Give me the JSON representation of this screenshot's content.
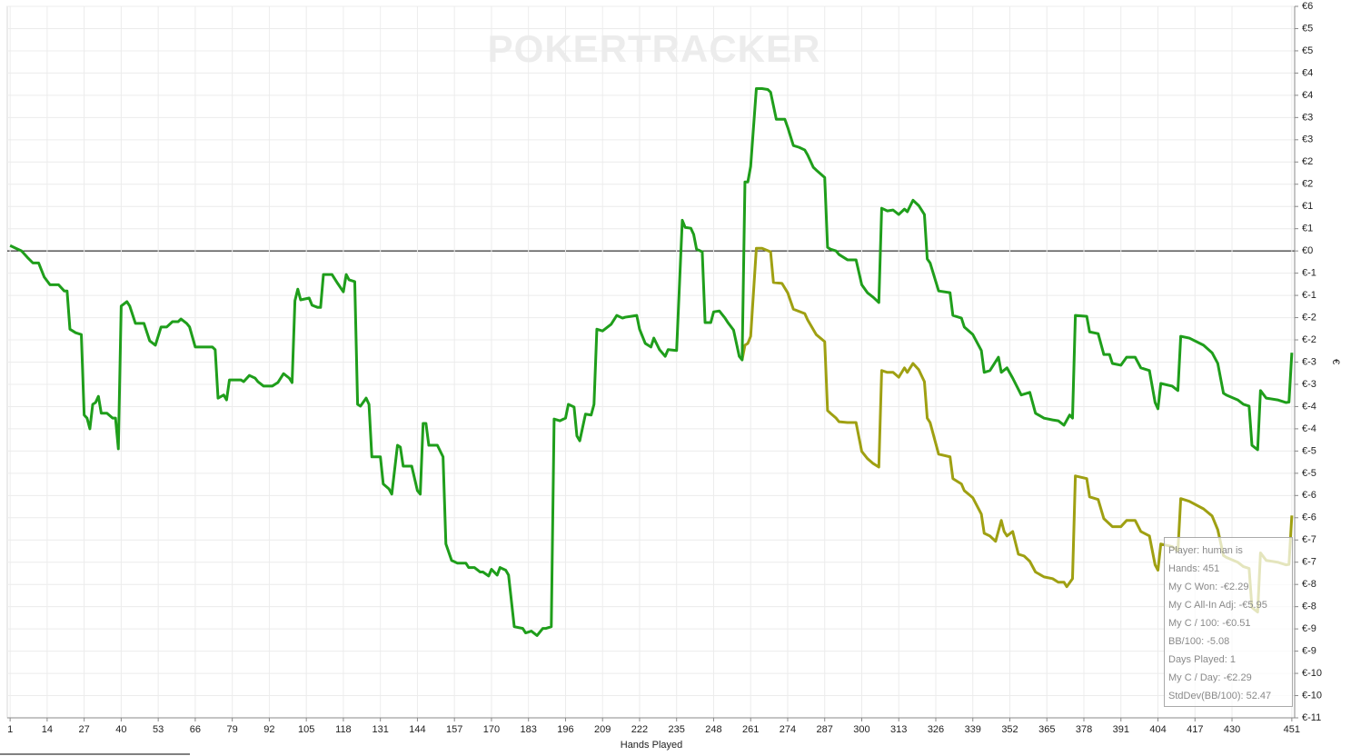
{
  "chart_data": {
    "type": "line",
    "watermark": "POKERTRACKER",
    "x_label": "Hands Played",
    "y_label": "€",
    "xlim": [
      0,
      452
    ],
    "ylim": [
      -10.5,
      5.5
    ],
    "xticks": [
      1,
      14,
      27,
      40,
      53,
      66,
      79,
      92,
      105,
      118,
      131,
      144,
      157,
      170,
      183,
      196,
      209,
      222,
      235,
      248,
      261,
      274,
      287,
      300,
      313,
      326,
      339,
      352,
      365,
      378,
      391,
      404,
      417,
      430,
      451
    ],
    "yticks": [
      {
        "value": 5.5,
        "label": "€6"
      },
      {
        "value": 5,
        "label": "€5"
      },
      {
        "value": 4.5,
        "label": "€5"
      },
      {
        "value": 4,
        "label": "€4"
      },
      {
        "value": 3.5,
        "label": "€4"
      },
      {
        "value": 3,
        "label": "€3"
      },
      {
        "value": 2.5,
        "label": "€3"
      },
      {
        "value": 2,
        "label": "€2"
      },
      {
        "value": 1.5,
        "label": "€2"
      },
      {
        "value": 1,
        "label": "€1"
      },
      {
        "value": 0.5,
        "label": "€1"
      },
      {
        "value": 0,
        "label": "€0"
      },
      {
        "value": -0.5,
        "label": "€-1"
      },
      {
        "value": -1,
        "label": "€-1"
      },
      {
        "value": -1.5,
        "label": "€-2"
      },
      {
        "value": -2,
        "label": "€-2"
      },
      {
        "value": -2.5,
        "label": "€-3"
      },
      {
        "value": -3,
        "label": "€-3"
      },
      {
        "value": -3.5,
        "label": "€-4"
      },
      {
        "value": -4,
        "label": "€-4"
      },
      {
        "value": -4.5,
        "label": "€-5"
      },
      {
        "value": -5,
        "label": "€-5"
      },
      {
        "value": -5.5,
        "label": "€-6"
      },
      {
        "value": -6,
        "label": "€-6"
      },
      {
        "value": -6.5,
        "label": "€-7"
      },
      {
        "value": -7,
        "label": "€-7"
      },
      {
        "value": -7.5,
        "label": "€-8"
      },
      {
        "value": -8,
        "label": "€-8"
      },
      {
        "value": -8.5,
        "label": "€-9"
      },
      {
        "value": -9,
        "label": "€-9"
      },
      {
        "value": -9.5,
        "label": "€-10"
      },
      {
        "value": -10,
        "label": "€-10"
      },
      {
        "value": -10.5,
        "label": "€-11"
      }
    ],
    "grid": true,
    "zero_line": true,
    "series": [
      {
        "color": "#9fa012",
        "x": [
          258,
          259,
          260,
          261,
          263,
          265,
          268,
          269,
          272,
          274,
          276,
          280,
          281,
          284,
          287,
          288,
          289,
          291,
          292,
          295,
          298,
          300,
          302,
          304,
          306,
          307,
          309,
          311,
          313,
          315,
          316,
          318,
          320,
          322,
          323,
          324,
          327,
          331,
          332,
          335,
          336,
          339,
          342,
          343,
          345,
          347,
          349,
          350,
          351,
          353,
          355,
          357,
          359,
          361,
          364,
          367,
          369,
          371,
          372,
          374,
          375,
          379,
          380,
          383,
          385,
          387,
          388,
          391,
          393,
          396,
          398,
          401,
          403,
          404,
          405,
          409,
          411,
          412,
          415,
          420,
          423,
          425,
          427,
          428,
          432,
          434,
          436,
          437,
          439,
          440,
          442,
          446,
          449,
          450,
          451
        ],
        "values": [
          -2.45,
          -2.12,
          -2.08,
          -1.92,
          0.06,
          0.06,
          -0.02,
          -0.71,
          -0.73,
          -0.94,
          -1.31,
          -1.41,
          -1.55,
          -1.88,
          -2.04,
          -3.59,
          -3.65,
          -3.76,
          -3.84,
          -3.86,
          -3.86,
          -4.51,
          -4.67,
          -4.78,
          -4.86,
          -2.69,
          -2.73,
          -2.73,
          -2.84,
          -2.63,
          -2.73,
          -2.53,
          -2.67,
          -2.94,
          -3.76,
          -3.86,
          -4.57,
          -4.63,
          -5.12,
          -5.24,
          -5.39,
          -5.55,
          -5.92,
          -6.35,
          -6.41,
          -6.53,
          -6.06,
          -6.31,
          -6.41,
          -6.31,
          -6.82,
          -6.86,
          -6.98,
          -7.22,
          -7.33,
          -7.37,
          -7.45,
          -7.45,
          -7.55,
          -7.37,
          -5.06,
          -5.12,
          -5.53,
          -5.59,
          -6.02,
          -6.14,
          -6.2,
          -6.2,
          -6.06,
          -6.06,
          -6.31,
          -6.41,
          -7.06,
          -7.18,
          -6.59,
          -6.65,
          -6.75,
          -5.57,
          -5.63,
          -5.8,
          -5.96,
          -6.27,
          -6.85,
          -6.89,
          -7.0,
          -7.1,
          -7.14,
          -8.02,
          -8.12,
          -6.79,
          -6.96,
          -7.0,
          -7.06,
          -7.05,
          -5.95
        ]
      },
      {
        "color": "#1f9e1b",
        "x": [
          1,
          3,
          5,
          7,
          9,
          11,
          13,
          15,
          18,
          20,
          21,
          22,
          24,
          26,
          27,
          28,
          29,
          30,
          31,
          32,
          33,
          35,
          37,
          38,
          39,
          40,
          42,
          43,
          45,
          48,
          50,
          52,
          54,
          56,
          58,
          60,
          61,
          63,
          64,
          66,
          72,
          73,
          74,
          76,
          77,
          78,
          82,
          83,
          85,
          87,
          88,
          90,
          93,
          95,
          97,
          99,
          100,
          101,
          102,
          103,
          106,
          107,
          109,
          110,
          111,
          114,
          116,
          118,
          119,
          120,
          122,
          123,
          124,
          126,
          127,
          128,
          131,
          132,
          134,
          135,
          137,
          138,
          139,
          142,
          144,
          145,
          146,
          147,
          148,
          151,
          153,
          154,
          156,
          158,
          161,
          162,
          164,
          166,
          167,
          169,
          170,
          172,
          173,
          175,
          176,
          178,
          181,
          182,
          184,
          186,
          188,
          189,
          191,
          192,
          194,
          196,
          197,
          199,
          200,
          201,
          203,
          205,
          206,
          207,
          209,
          212,
          214,
          216,
          217,
          219,
          221,
          222,
          224,
          226,
          227,
          229,
          231,
          232,
          235,
          237,
          238,
          240,
          241,
          242,
          244,
          245,
          247,
          248,
          250,
          252,
          253,
          255,
          257,
          258,
          259,
          260,
          261,
          263,
          265,
          267,
          268,
          270,
          273,
          274,
          276,
          278,
          280,
          281,
          283,
          284,
          287,
          288,
          289,
          291,
          292,
          295,
          298,
          300,
          302,
          304,
          306,
          307,
          309,
          311,
          313,
          315,
          316,
          318,
          320,
          322,
          323,
          324,
          327,
          331,
          332,
          335,
          336,
          339,
          342,
          343,
          345,
          348,
          349,
          351,
          353,
          356,
          359,
          361,
          364,
          367,
          369,
          371,
          373,
          374,
          375,
          379,
          380,
          383,
          385,
          387,
          388,
          391,
          393,
          396,
          398,
          401,
          403,
          404,
          405,
          409,
          411,
          412,
          415,
          420,
          423,
          425,
          427,
          428,
          432,
          434,
          436,
          437,
          439,
          440,
          442,
          446,
          449,
          450,
          451
        ],
        "values": [
          0.12,
          0.06,
          0,
          -0.14,
          -0.27,
          -0.27,
          -0.59,
          -0.76,
          -0.76,
          -0.9,
          -0.9,
          -1.76,
          -1.84,
          -1.88,
          -3.69,
          -3.76,
          -4.0,
          -3.45,
          -3.41,
          -3.27,
          -3.65,
          -3.65,
          -3.76,
          -3.76,
          -4.45,
          -1.24,
          -1.14,
          -1.24,
          -1.63,
          -1.63,
          -2.02,
          -2.12,
          -1.71,
          -1.71,
          -1.59,
          -1.59,
          -1.53,
          -1.63,
          -1.71,
          -2.16,
          -2.16,
          -2.22,
          -3.31,
          -3.24,
          -3.35,
          -2.9,
          -2.9,
          -2.94,
          -2.8,
          -2.86,
          -2.94,
          -3.04,
          -3.04,
          -2.96,
          -2.76,
          -2.86,
          -2.96,
          -1.12,
          -0.86,
          -1.1,
          -1.06,
          -1.22,
          -1.27,
          -1.27,
          -0.53,
          -0.53,
          -0.73,
          -0.92,
          -0.53,
          -0.65,
          -0.69,
          -3.45,
          -3.49,
          -3.31,
          -3.45,
          -4.63,
          -4.63,
          -5.24,
          -5.35,
          -5.47,
          -4.37,
          -4.41,
          -4.84,
          -4.84,
          -5.39,
          -5.47,
          -3.88,
          -3.88,
          -4.37,
          -4.37,
          -4.63,
          -6.59,
          -6.96,
          -7.02,
          -7.02,
          -7.12,
          -7.12,
          -7.22,
          -7.22,
          -7.31,
          -7.16,
          -7.29,
          -7.12,
          -7.18,
          -7.29,
          -8.45,
          -8.49,
          -8.59,
          -8.55,
          -8.65,
          -8.49,
          -8.49,
          -8.45,
          -3.78,
          -3.82,
          -3.76,
          -3.45,
          -3.51,
          -4.16,
          -4.27,
          -3.67,
          -3.69,
          -3.45,
          -1.76,
          -1.8,
          -1.65,
          -1.45,
          -1.51,
          -1.49,
          -1.47,
          -1.45,
          -1.76,
          -2.08,
          -2.16,
          -1.96,
          -2.22,
          -2.37,
          -2.22,
          -2.24,
          0.69,
          0.53,
          0.51,
          0.37,
          0.04,
          -0.02,
          -1.61,
          -1.61,
          -1.37,
          -1.35,
          -1.51,
          -1.61,
          -1.78,
          -2.37,
          -2.45,
          1.55,
          1.55,
          1.9,
          3.65,
          3.65,
          3.63,
          3.57,
          2.96,
          2.96,
          2.78,
          2.37,
          2.33,
          2.27,
          2.16,
          1.88,
          1.82,
          1.65,
          0.08,
          0.04,
          0,
          -0.08,
          -0.2,
          -0.2,
          -0.76,
          -0.94,
          -1.04,
          -1.16,
          0.96,
          0.9,
          0.92,
          0.82,
          0.94,
          0.88,
          1.14,
          1.02,
          0.82,
          -0.18,
          -0.27,
          -0.9,
          -0.94,
          -1.45,
          -1.51,
          -1.71,
          -1.88,
          -2.24,
          -2.73,
          -2.69,
          -2.39,
          -2.73,
          -2.63,
          -2.86,
          -3.24,
          -3.18,
          -3.65,
          -3.76,
          -3.8,
          -3.82,
          -3.92,
          -3.69,
          -3.76,
          -1.45,
          -1.47,
          -1.82,
          -1.86,
          -2.33,
          -2.33,
          -2.53,
          -2.57,
          -2.39,
          -2.39,
          -2.63,
          -2.69,
          -3.41,
          -3.55,
          -2.98,
          -3.04,
          -3.14,
          -1.92,
          -1.96,
          -2.12,
          -2.29,
          -2.53,
          -3.2,
          -3.24,
          -3.35,
          -3.45,
          -3.49,
          -4.37,
          -4.47,
          -3.14,
          -3.31,
          -3.35,
          -3.41,
          -3.4,
          -2.29
        ]
      }
    ]
  },
  "tooltip": {
    "lines": [
      "Player: human is",
      "Hands: 451",
      "My C Won: -€2.29",
      "My C All-In Adj: -€5.95",
      "My C / 100: -€0.51",
      "BB/100: -5.08",
      "Days Played: 1",
      "My C / Day: -€2.29",
      "StdDev(BB/100): 52.47"
    ]
  }
}
